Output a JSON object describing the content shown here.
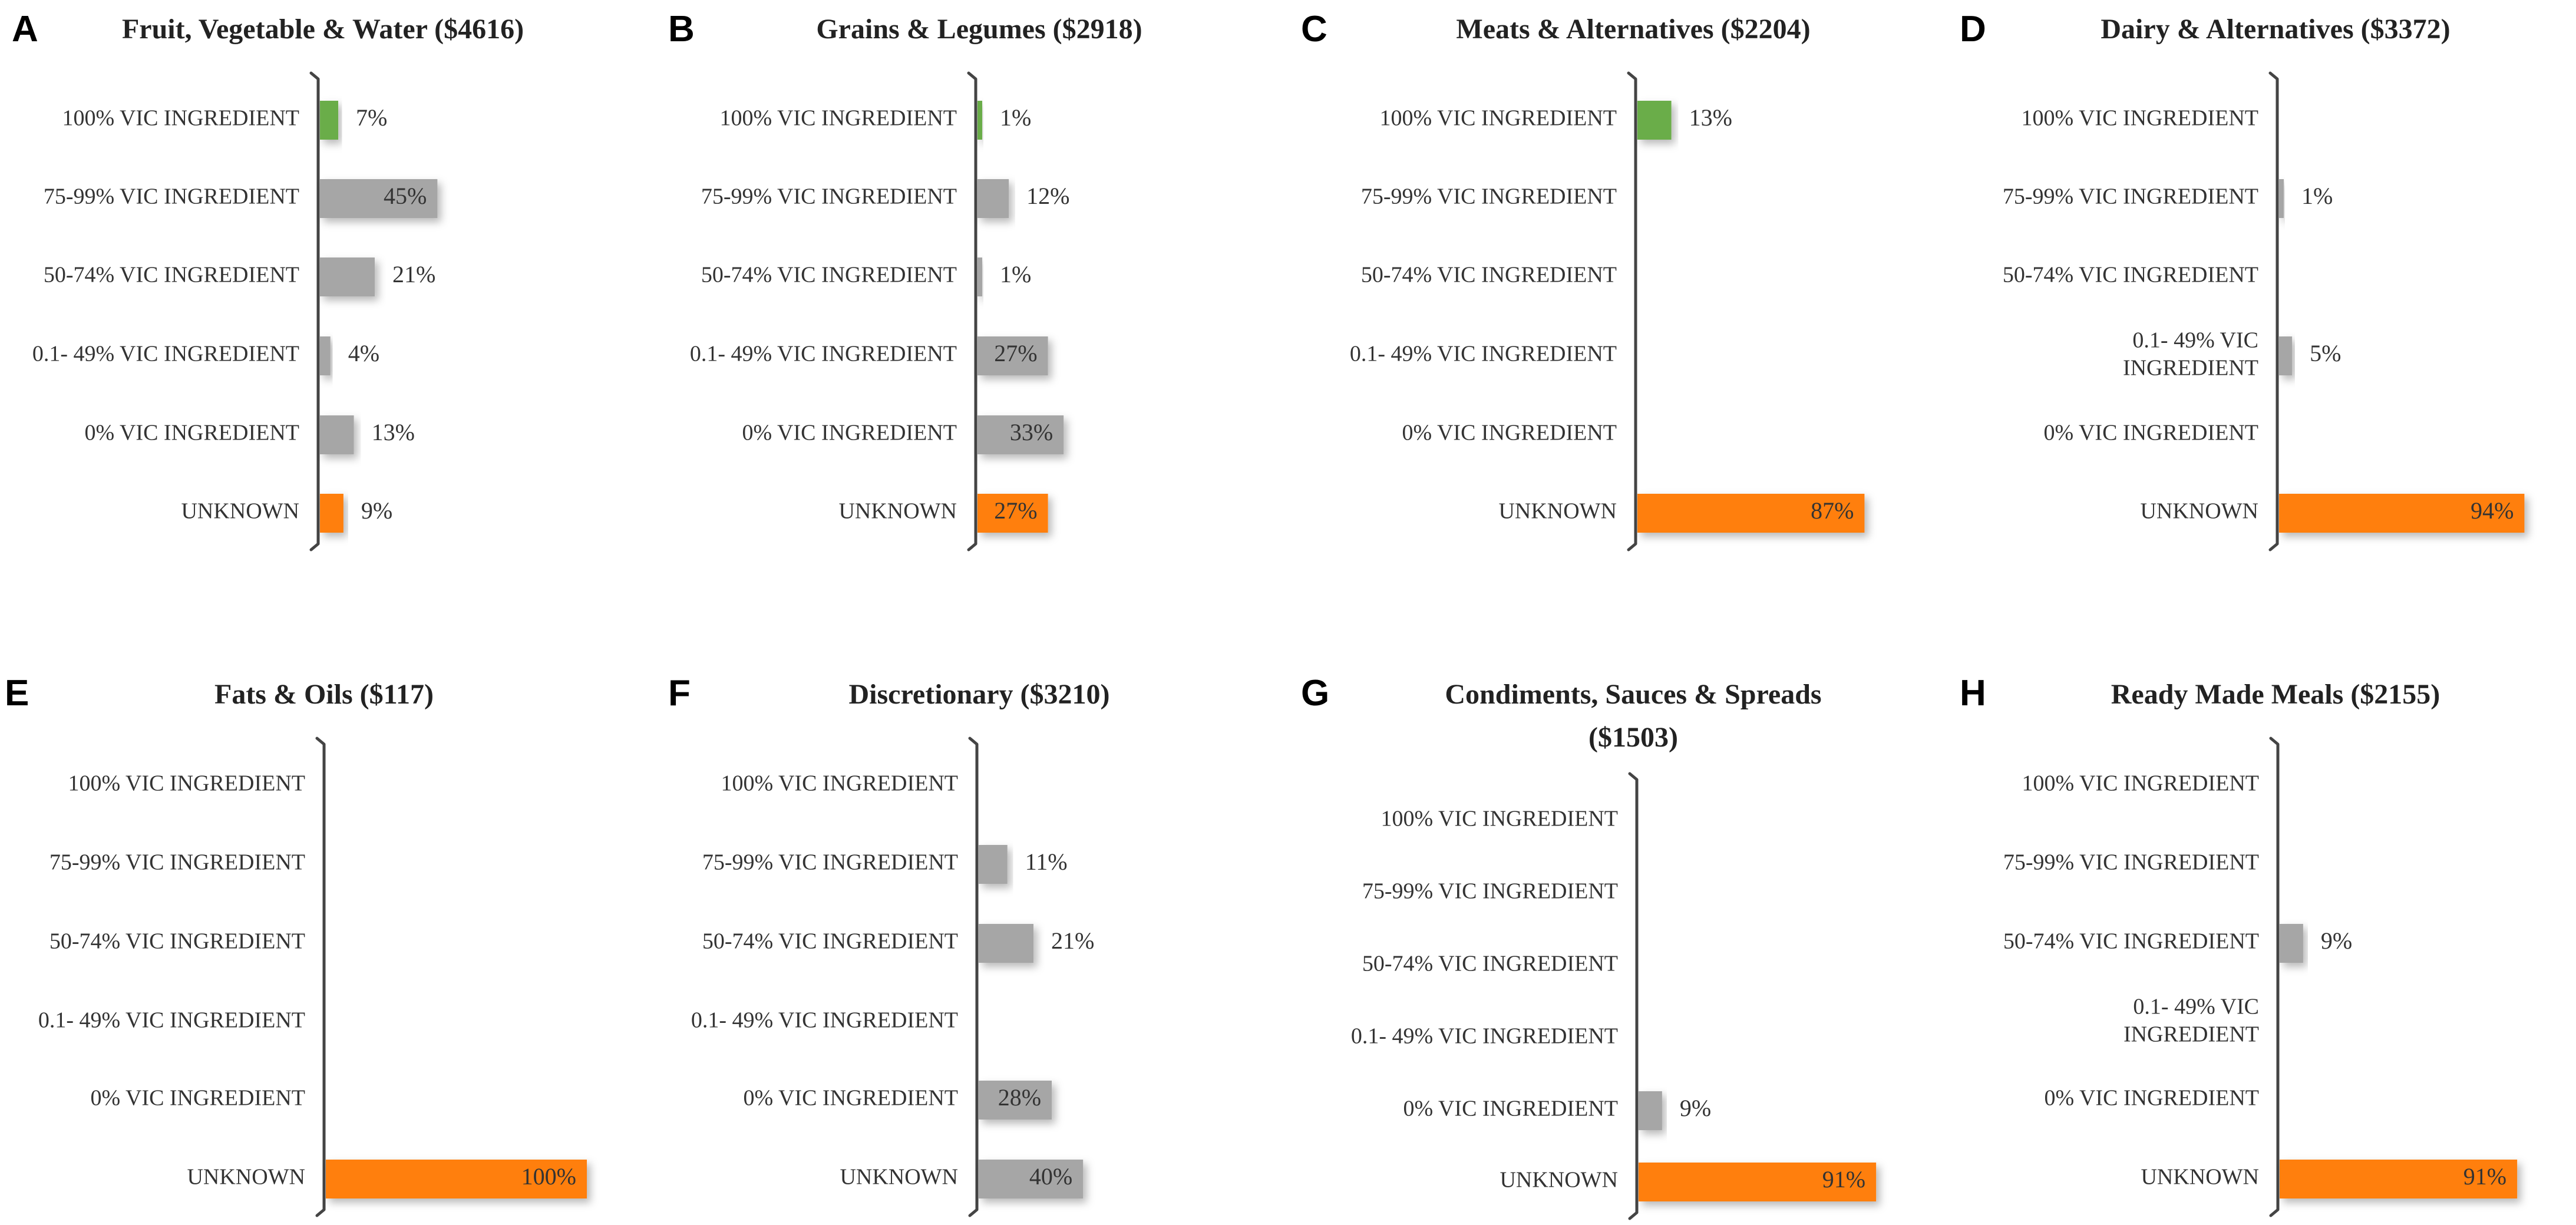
{
  "colors": {
    "green": "#6aad48",
    "gray": "#a6a6a6",
    "orange": "#ff7f0e",
    "axis": "#444444",
    "text": "#333333"
  },
  "chart_data": [
    {
      "type": "bar",
      "orientation": "horizontal",
      "letter": "A",
      "title": "Fruit, Vegetable & Water ($4616)",
      "categories": [
        "100% VIC INGREDIENT",
        "75-99% VIC INGREDIENT",
        "50-74% VIC INGREDIENT",
        "0.1- 49% VIC INGREDIENT",
        "0% VIC INGREDIENT",
        "UNKNOWN"
      ],
      "values": [
        7,
        45,
        21,
        4,
        13,
        9
      ],
      "value_labels": [
        "7%",
        "45%",
        "21%",
        "4%",
        "13%",
        "9%"
      ],
      "colors": [
        "green",
        "gray",
        "gray",
        "gray",
        "gray",
        "orange"
      ],
      "xlim": [
        0,
        100
      ]
    },
    {
      "type": "bar",
      "orientation": "horizontal",
      "letter": "B",
      "title": "Grains & Legumes ($2918)",
      "categories": [
        "100% VIC INGREDIENT",
        "75-99% VIC INGREDIENT",
        "50-74% VIC INGREDIENT",
        "0.1- 49% VIC INGREDIENT",
        "0% VIC INGREDIENT",
        "UNKNOWN"
      ],
      "values": [
        1,
        12,
        1,
        27,
        33,
        27
      ],
      "value_labels": [
        "1%",
        "12%",
        "1%",
        "27%",
        "33%",
        "27%"
      ],
      "colors": [
        "green",
        "gray",
        "gray",
        "gray",
        "gray",
        "orange"
      ],
      "xlim": [
        0,
        100
      ]
    },
    {
      "type": "bar",
      "orientation": "horizontal",
      "letter": "C",
      "title": "Meats & Alternatives ($2204)",
      "categories": [
        "100% VIC INGREDIENT",
        "75-99% VIC INGREDIENT",
        "50-74% VIC INGREDIENT",
        "0.1- 49% VIC INGREDIENT",
        "0% VIC INGREDIENT",
        "UNKNOWN"
      ],
      "values": [
        13,
        0,
        0,
        0,
        0,
        87
      ],
      "value_labels": [
        "13%",
        "",
        "",
        "",
        "",
        "87%"
      ],
      "colors": [
        "green",
        "gray",
        "gray",
        "gray",
        "gray",
        "orange"
      ],
      "xlim": [
        0,
        100
      ]
    },
    {
      "type": "bar",
      "orientation": "horizontal",
      "letter": "D",
      "title": "Dairy & Alternatives ($3372)",
      "categories": [
        "100% VIC INGREDIENT",
        "75-99% VIC INGREDIENT",
        "50-74% VIC INGREDIENT",
        "0.1- 49% VIC INGREDIENT",
        "0% VIC INGREDIENT",
        "UNKNOWN"
      ],
      "values": [
        0,
        1,
        0,
        5,
        0,
        94
      ],
      "value_labels": [
        "",
        "1%",
        "",
        "5%",
        "",
        "94%"
      ],
      "colors": [
        "green",
        "gray",
        "gray",
        "gray",
        "gray",
        "orange"
      ],
      "xlim": [
        0,
        100
      ]
    },
    {
      "type": "bar",
      "orientation": "horizontal",
      "letter": "E",
      "title": "Fats & Oils ($117)",
      "categories": [
        "100% VIC INGREDIENT",
        "75-99% VIC INGREDIENT",
        "50-74% VIC INGREDIENT",
        "0.1- 49% VIC INGREDIENT",
        "0% VIC INGREDIENT",
        "UNKNOWN"
      ],
      "values": [
        0,
        0,
        0,
        0,
        0,
        100
      ],
      "value_labels": [
        "",
        "",
        "",
        "",
        "",
        "100%"
      ],
      "colors": [
        "green",
        "gray",
        "gray",
        "gray",
        "gray",
        "orange"
      ],
      "xlim": [
        0,
        100
      ]
    },
    {
      "type": "bar",
      "orientation": "horizontal",
      "letter": "F",
      "title": "Discretionary ($3210)",
      "categories": [
        "100% VIC INGREDIENT",
        "75-99% VIC INGREDIENT",
        "50-74% VIC INGREDIENT",
        "0.1- 49% VIC INGREDIENT",
        "0% VIC INGREDIENT",
        "UNKNOWN"
      ],
      "values": [
        0,
        11,
        21,
        0,
        28,
        40
      ],
      "value_labels": [
        "",
        "11%",
        "21%",
        "",
        "28%",
        "40%"
      ],
      "colors": [
        "green",
        "gray",
        "gray",
        "gray",
        "gray",
        "gray"
      ],
      "xlim": [
        0,
        100
      ]
    },
    {
      "type": "bar",
      "orientation": "horizontal",
      "letter": "G",
      "title": "Condiments, Sauces & Spreads ($1503)",
      "categories": [
        "100% VIC INGREDIENT",
        "75-99% VIC INGREDIENT",
        "50-74% VIC INGREDIENT",
        "0.1- 49% VIC INGREDIENT",
        "0% VIC INGREDIENT",
        "UNKNOWN"
      ],
      "values": [
        0,
        0,
        0,
        0,
        9,
        91
      ],
      "value_labels": [
        "",
        "",
        "",
        "",
        "9%",
        "91%"
      ],
      "colors": [
        "green",
        "gray",
        "gray",
        "gray",
        "gray",
        "orange"
      ],
      "xlim": [
        0,
        100
      ]
    },
    {
      "type": "bar",
      "orientation": "horizontal",
      "letter": "H",
      "title": "Ready Made Meals ($2155)",
      "categories": [
        "100% VIC INGREDIENT",
        "75-99% VIC INGREDIENT",
        "50-74% VIC INGREDIENT",
        "0.1- 49% VIC INGREDIENT",
        "0% VIC INGREDIENT",
        "UNKNOWN"
      ],
      "values": [
        0,
        0,
        9,
        0,
        0,
        91
      ],
      "value_labels": [
        "",
        "",
        "9%",
        "",
        "",
        "91%"
      ],
      "colors": [
        "green",
        "gray",
        "gray",
        "gray",
        "gray",
        "orange"
      ],
      "xlim": [
        0,
        100
      ]
    }
  ]
}
